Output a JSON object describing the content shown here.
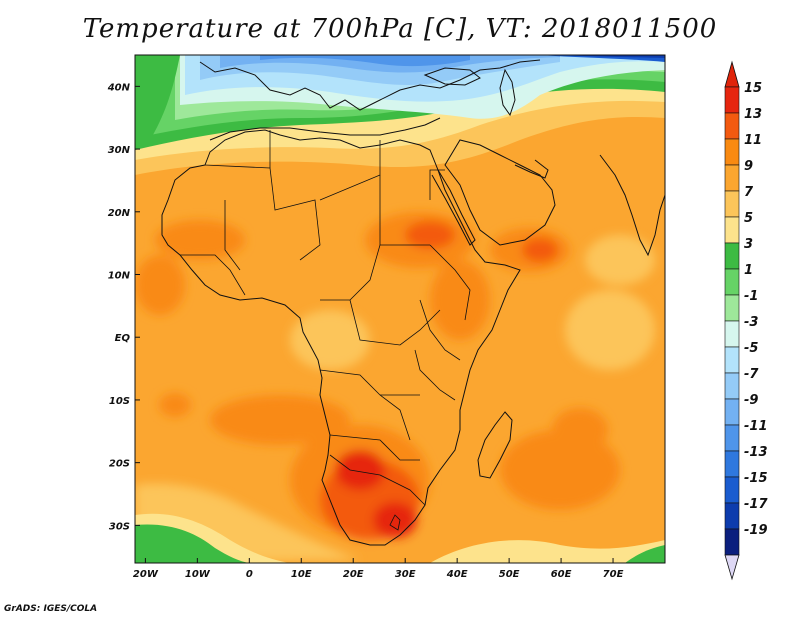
{
  "title": "Temperature at 700hPa [C], VT: 2018011500",
  "credit": "GrADS: IGES/COLA",
  "map": {
    "lon_range": [
      -22,
      80
    ],
    "lat_range": [
      -36,
      45
    ],
    "lon_ticks": [
      {
        "value": -20,
        "label": "20W"
      },
      {
        "value": -10,
        "label": "10W"
      },
      {
        "value": 0,
        "label": "0"
      },
      {
        "value": 10,
        "label": "10E"
      },
      {
        "value": 20,
        "label": "20E"
      },
      {
        "value": 30,
        "label": "30E"
      },
      {
        "value": 40,
        "label": "40E"
      },
      {
        "value": 50,
        "label": "50E"
      },
      {
        "value": 60,
        "label": "60E"
      },
      {
        "value": 70,
        "label": "70E"
      }
    ],
    "lat_ticks": [
      {
        "value": 40,
        "label": "40N"
      },
      {
        "value": 30,
        "label": "30N"
      },
      {
        "value": 20,
        "label": "20N"
      },
      {
        "value": 10,
        "label": "10N"
      },
      {
        "value": 0,
        "label": "EQ"
      },
      {
        "value": -10,
        "label": "10S"
      },
      {
        "value": -20,
        "label": "20S"
      },
      {
        "value": -30,
        "label": "30S"
      }
    ]
  },
  "colorbar": {
    "levels": [
      "15",
      "13",
      "11",
      "9",
      "7",
      "5",
      "3",
      "1",
      "-1",
      "-3",
      "-5",
      "-7",
      "-9",
      "-11",
      "-13",
      "-15",
      "-17",
      "-19"
    ],
    "colors": [
      "#e6260f",
      "#f35a10",
      "#f98a12",
      "#fba630",
      "#fcc55a",
      "#fde38c",
      "#3dbb43",
      "#66d366",
      "#9ee89a",
      "#d6f6ee",
      "#b3e3fb",
      "#94cbf7",
      "#73b1f2",
      "#4f95ea",
      "#2f78de",
      "#1a5ccf",
      "#0d3cad",
      "#0b1f7e"
    ],
    "top_triangle_color": "#e0240b",
    "bottom_triangle_color": "#ded8f5"
  }
}
